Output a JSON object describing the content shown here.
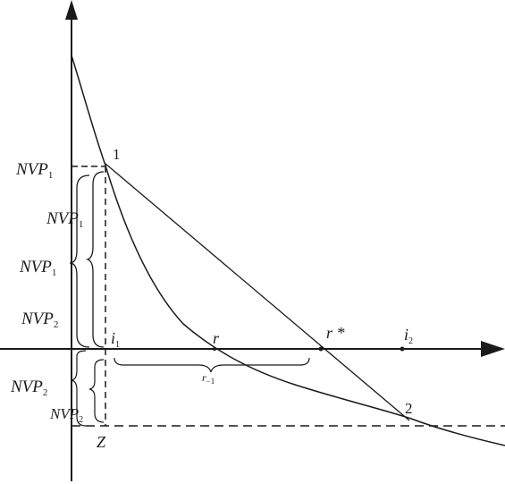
{
  "labels": {
    "nvp1_a": "NVP",
    "nvp1_a_sub": "1",
    "nvp1_b": "NVP",
    "nvp1_b_sub": "1",
    "nvp1_c": "NVP",
    "nvp1_c_sub": "1",
    "nvp2_a": "NVP",
    "nvp2_a_sub": "2",
    "nvp2_b": "NVP",
    "nvp2_b_sub": "2",
    "nvp2_c": "NVP",
    "nvp2_c_sub": "2",
    "point1": "1",
    "point2": "2",
    "i1": "i",
    "i1_sub": "1",
    "r": "r",
    "r_star": "r *",
    "i2": "i",
    "i2_sub": "2",
    "r_minus": "r",
    "r_minus_sub": "−1",
    "z": "Z"
  }
}
